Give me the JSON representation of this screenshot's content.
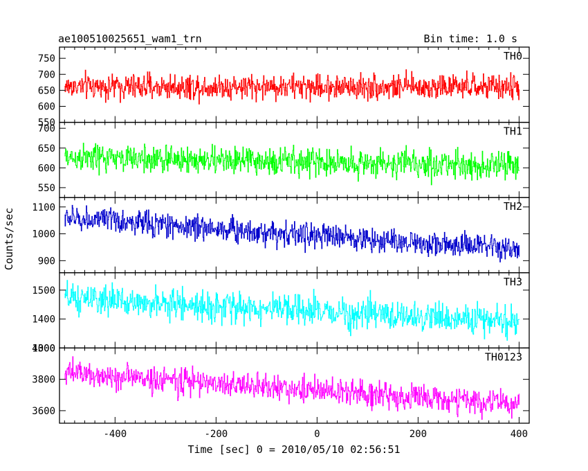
{
  "chart_data": {
    "type": "line",
    "title_left": "ae100510025651_wam1_trn",
    "title_right": "Bin time: 1.0 s",
    "xlabel": "Time [sec] 0 = 2010/05/10 02:56:51",
    "ylabel": "Counts/sec",
    "xlim": [
      -510,
      420
    ],
    "xticks": [
      -400,
      -200,
      0,
      200,
      400
    ],
    "x_range": [
      -500,
      400
    ],
    "x_step": 1,
    "grid": false,
    "panels": [
      {
        "name": "TH0",
        "color": "#ff0000",
        "ylim": [
          550,
          785
        ],
        "yticks": [
          550,
          600,
          650,
          700,
          750
        ],
        "mean_start": 662,
        "mean_end": 660,
        "noise_amp": 42,
        "min_shown": 556,
        "max_shown": 785
      },
      {
        "name": "TH1",
        "color": "#00ff00",
        "ylim": [
          525,
          715
        ],
        "yticks": [
          550,
          600,
          650,
          700
        ],
        "mean_start": 626,
        "mean_end": 605,
        "noise_amp": 38,
        "min_shown": 530,
        "max_shown": 712
      },
      {
        "name": "TH2",
        "color": "#0000cc",
        "ylim": [
          855,
          1135
        ],
        "yticks": [
          900,
          1000,
          1100
        ],
        "mean_start": 1060,
        "mean_end": 940,
        "noise_amp": 50,
        "min_shown": 860,
        "max_shown": 1132
      },
      {
        "name": "TH3",
        "color": "#00ffff",
        "ylim": [
          1300,
          1560
        ],
        "yticks": [
          1300,
          1400,
          1500
        ],
        "mean_start": 1470,
        "mean_end": 1390,
        "noise_amp": 55,
        "min_shown": 1305,
        "max_shown": 1555
      },
      {
        "name": "TH0123",
        "color": "#ff00ff",
        "ylim": [
          3520,
          4000
        ],
        "yticks": [
          3600,
          3800,
          4000
        ],
        "mean_start": 3840,
        "mean_end": 3640,
        "noise_amp": 90,
        "min_shown": 3530,
        "max_shown": 3990
      }
    ]
  }
}
